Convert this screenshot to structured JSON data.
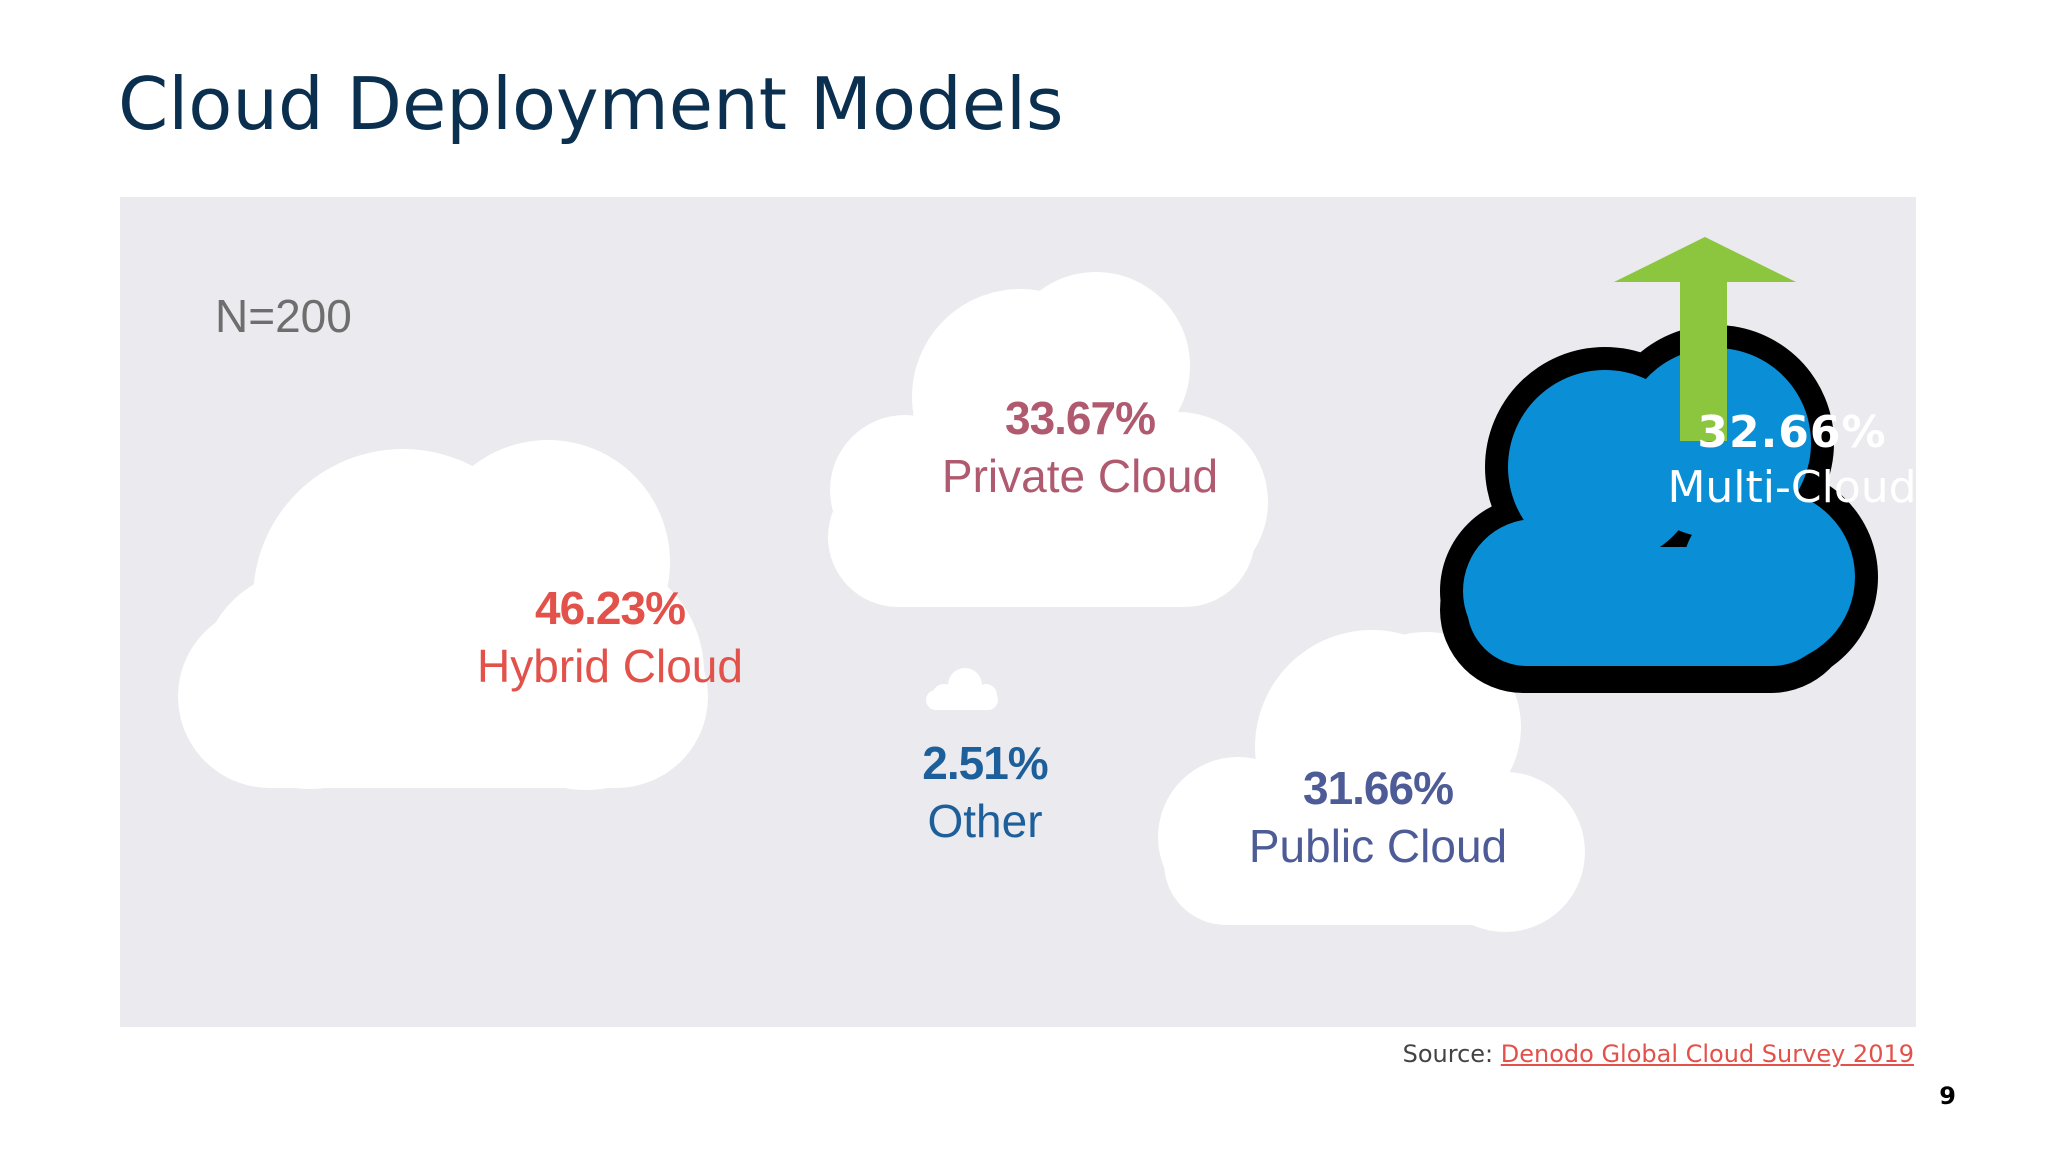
{
  "slide": {
    "title": "Cloud Deployment Models",
    "sample_size": "N=200",
    "source_prefix": "Source:",
    "source_link": "Denodo Global Cloud Survey 2019",
    "page_number": "9"
  },
  "clouds": {
    "hybrid": {
      "percent": "46.23%",
      "name": "Hybrid Cloud"
    },
    "private": {
      "percent": "33.67%",
      "name": "Private Cloud"
    },
    "other": {
      "percent": "2.51%",
      "name": "Other"
    },
    "public": {
      "percent": "31.66%",
      "name": "Public Cloud"
    },
    "multi": {
      "percent": "32.66%",
      "name": "Multi-Cloud"
    }
  },
  "colors": {
    "title": "#0b2f4e",
    "panel_background": "#eaeaef",
    "hybrid": "#e2514a",
    "private": "#b05a70",
    "other": "#1d5f9a",
    "public": "#4d5c97",
    "multi_fill": "#0a8fd6",
    "multi_outline": "#000000",
    "arrow": "#8cc63f",
    "link": "#e2514a"
  },
  "icons": {
    "trend_arrow": "up-arrow-icon"
  }
}
